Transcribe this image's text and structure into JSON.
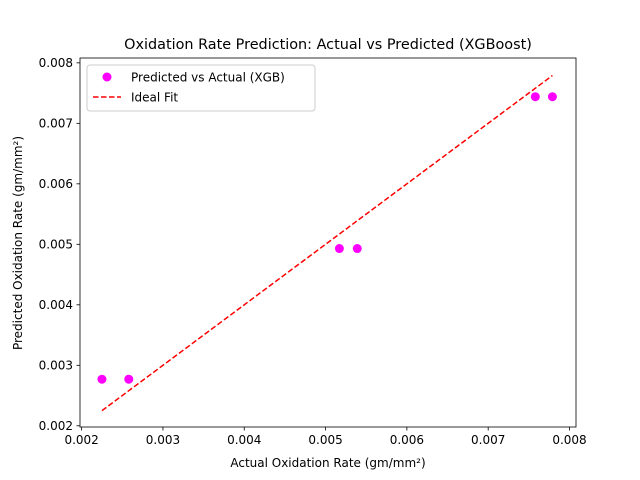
{
  "chart_data": {
    "type": "scatter",
    "title": "Oxidation Rate Prediction: Actual vs Predicted (XGBoost)",
    "xlabel": "Actual Oxidation Rate (gm/mm²)",
    "ylabel": "Predicted Oxidation Rate (gm/mm²)",
    "xlim": [
      0.00198,
      0.00808
    ],
    "ylim": [
      0.00198,
      0.00808
    ],
    "xticks": [
      0.002,
      0.003,
      0.004,
      0.005,
      0.006,
      0.007,
      0.008
    ],
    "xtick_labels": [
      "0.002",
      "0.003",
      "0.004",
      "0.005",
      "0.006",
      "0.007",
      "0.008"
    ],
    "yticks": [
      0.002,
      0.003,
      0.004,
      0.005,
      0.006,
      0.007,
      0.008
    ],
    "ytick_labels": [
      "0.002",
      "0.003",
      "0.004",
      "0.005",
      "0.006",
      "0.007",
      "0.008"
    ],
    "grid": false,
    "legend_position": "upper-left",
    "series": [
      {
        "name": "Predicted vs Actual (XGB)",
        "kind": "scatter",
        "color": "#ff00ff",
        "x": [
          0.00225,
          0.00258,
          0.00517,
          0.00539,
          0.00758,
          0.00779
        ],
        "y": [
          0.00277,
          0.00277,
          0.00493,
          0.00493,
          0.00744,
          0.00744
        ]
      },
      {
        "name": "Ideal Fit",
        "kind": "line",
        "style": "dashed",
        "color": "#ff0000",
        "x": [
          0.00225,
          0.00779
        ],
        "y": [
          0.00225,
          0.00779
        ]
      }
    ]
  }
}
